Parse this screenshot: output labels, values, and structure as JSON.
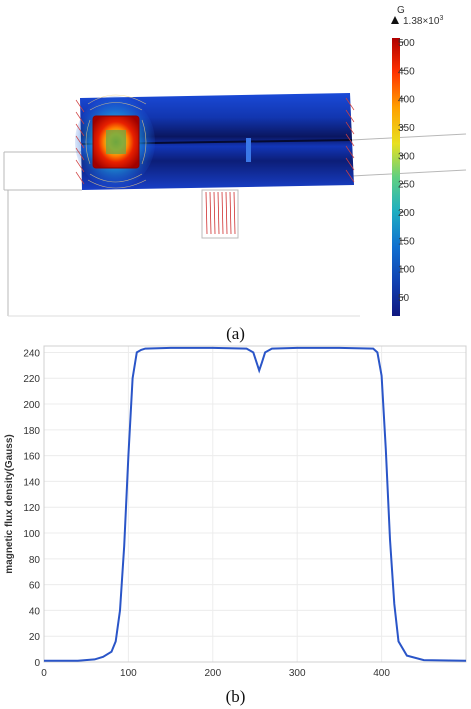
{
  "figure_a": {
    "colorbar": {
      "unit": "G",
      "max_marker": "1.38×10",
      "max_marker_exp": "3",
      "ticks": [
        "500",
        "450",
        "400",
        "350",
        "300",
        "250",
        "200",
        "150",
        "100",
        "50"
      ],
      "tick_values": [
        500,
        450,
        400,
        350,
        300,
        250,
        200,
        150,
        100,
        50
      ],
      "range": [
        20,
        500
      ],
      "colors": [
        "#b00000",
        "#ff3000",
        "#ffa000",
        "#e8e020",
        "#60d080",
        "#20b0c0",
        "#1070d0",
        "#1040b0",
        "#101880"
      ]
    },
    "caption": "(a)"
  },
  "chart_data": {
    "type": "line",
    "title": "",
    "xlabel": "",
    "ylabel": "magnetic flux density(Gauss)",
    "xlim": [
      0,
      500
    ],
    "ylim": [
      0,
      245
    ],
    "xticks": [
      0,
      100,
      200,
      300,
      400
    ],
    "yticks": [
      0,
      20,
      40,
      60,
      80,
      100,
      120,
      140,
      160,
      180,
      200,
      220,
      240
    ],
    "grid": true,
    "series": [
      {
        "color": "#2a55c8",
        "x": [
          0,
          40,
          60,
          70,
          80,
          85,
          90,
          95,
          100,
          105,
          110,
          115,
          120,
          150,
          200,
          240,
          248,
          252,
          255,
          258,
          262,
          270,
          300,
          350,
          390,
          395,
          400,
          405,
          410,
          415,
          420,
          430,
          450,
          500
        ],
        "y": [
          1,
          1,
          2,
          4,
          8,
          16,
          40,
          90,
          160,
          220,
          240,
          242,
          243,
          243.5,
          243.5,
          243,
          240,
          232,
          226,
          232,
          240,
          243,
          243.5,
          243.5,
          243,
          240,
          222,
          165,
          95,
          45,
          16,
          5,
          1.5,
          1
        ]
      }
    ],
    "caption": "(b)"
  }
}
